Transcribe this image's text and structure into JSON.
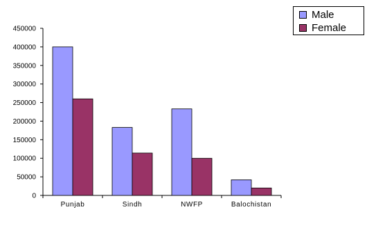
{
  "chart_data": {
    "type": "bar",
    "categories": [
      "Punjab",
      "Sindh",
      "NWFP",
      "Balochistan"
    ],
    "series": [
      {
        "name": "Male",
        "values": [
          400000,
          183000,
          233000,
          42000
        ],
        "color": "#9999ff"
      },
      {
        "name": "Female",
        "values": [
          260000,
          114000,
          100000,
          20000
        ],
        "color": "#993366"
      }
    ],
    "ylim": [
      0,
      450000
    ],
    "yticks": [
      0,
      50000,
      100000,
      150000,
      200000,
      250000,
      300000,
      350000,
      400000,
      450000
    ],
    "ytick_labels": [
      "0",
      "50000",
      "100000",
      "150000",
      "200000",
      "250000",
      "300000",
      "350000",
      "400000",
      "450000"
    ],
    "grid": false,
    "legend_position": "top-right"
  }
}
